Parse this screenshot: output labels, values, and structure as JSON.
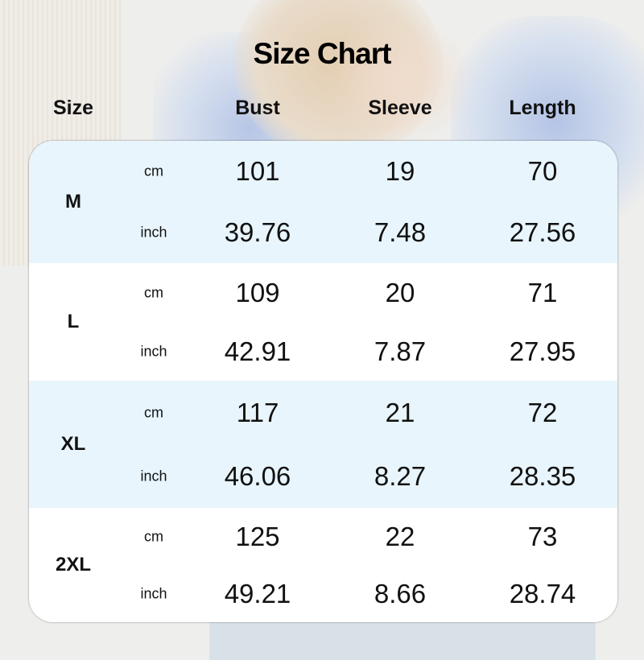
{
  "title": "Size Chart",
  "headers": {
    "size": "Size",
    "bust": "Bust",
    "sleeve": "Sleeve",
    "length": "Length"
  },
  "colors": {
    "row_alt": "#e8f5fc",
    "row": "#ffffff"
  },
  "rows": [
    {
      "size": "M",
      "cm": {
        "unit": "cm",
        "bust": "101",
        "sleeve": "19",
        "length": "70"
      },
      "inch": {
        "unit": "inch",
        "bust": "39.76",
        "sleeve": "7.48",
        "length": "27.56"
      }
    },
    {
      "size": "L",
      "cm": {
        "unit": "cm",
        "bust": "109",
        "sleeve": "20",
        "length": "71"
      },
      "inch": {
        "unit": "inch",
        "bust": "42.91",
        "sleeve": "7.87",
        "length": "27.95"
      }
    },
    {
      "size": "XL",
      "cm": {
        "unit": "cm",
        "bust": "117",
        "sleeve": "21",
        "length": "72"
      },
      "inch": {
        "unit": "inch",
        "bust": "46.06",
        "sleeve": "8.27",
        "length": "28.35"
      }
    },
    {
      "size": "2XL",
      "cm": {
        "unit": "cm",
        "bust": "125",
        "sleeve": "22",
        "length": "73"
      },
      "inch": {
        "unit": "inch",
        "bust": "49.21",
        "sleeve": "8.66",
        "length": "28.74"
      }
    }
  ]
}
